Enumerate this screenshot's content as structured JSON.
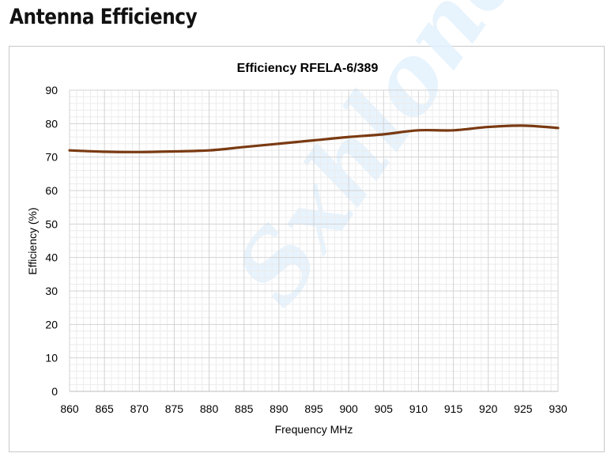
{
  "page": {
    "heading": "Antenna Efficiency",
    "watermark": "Sxhloner"
  },
  "chart_data": {
    "type": "line",
    "title": "Efficiency RFELA-6/389",
    "xlabel": "Frequency MHz",
    "ylabel": "Efficiency (%)",
    "xlim": [
      860,
      930
    ],
    "ylim": [
      0,
      90
    ],
    "x_ticks": [
      860,
      865,
      870,
      875,
      880,
      885,
      890,
      895,
      900,
      905,
      910,
      915,
      920,
      925,
      930
    ],
    "y_ticks": [
      0,
      10,
      20,
      30,
      40,
      50,
      60,
      70,
      80,
      90
    ],
    "grid": true,
    "minor_grid": true,
    "legend": "none",
    "series": [
      {
        "color": "#7a3a12",
        "x": [
          860,
          865,
          870,
          875,
          880,
          885,
          890,
          895,
          900,
          905,
          910,
          915,
          920,
          925,
          930
        ],
        "y": [
          72.0,
          71.6,
          71.5,
          71.7,
          72.0,
          73.0,
          74.0,
          75.0,
          76.0,
          76.8,
          78.0,
          78.0,
          79.0,
          79.4,
          78.7
        ]
      }
    ]
  }
}
